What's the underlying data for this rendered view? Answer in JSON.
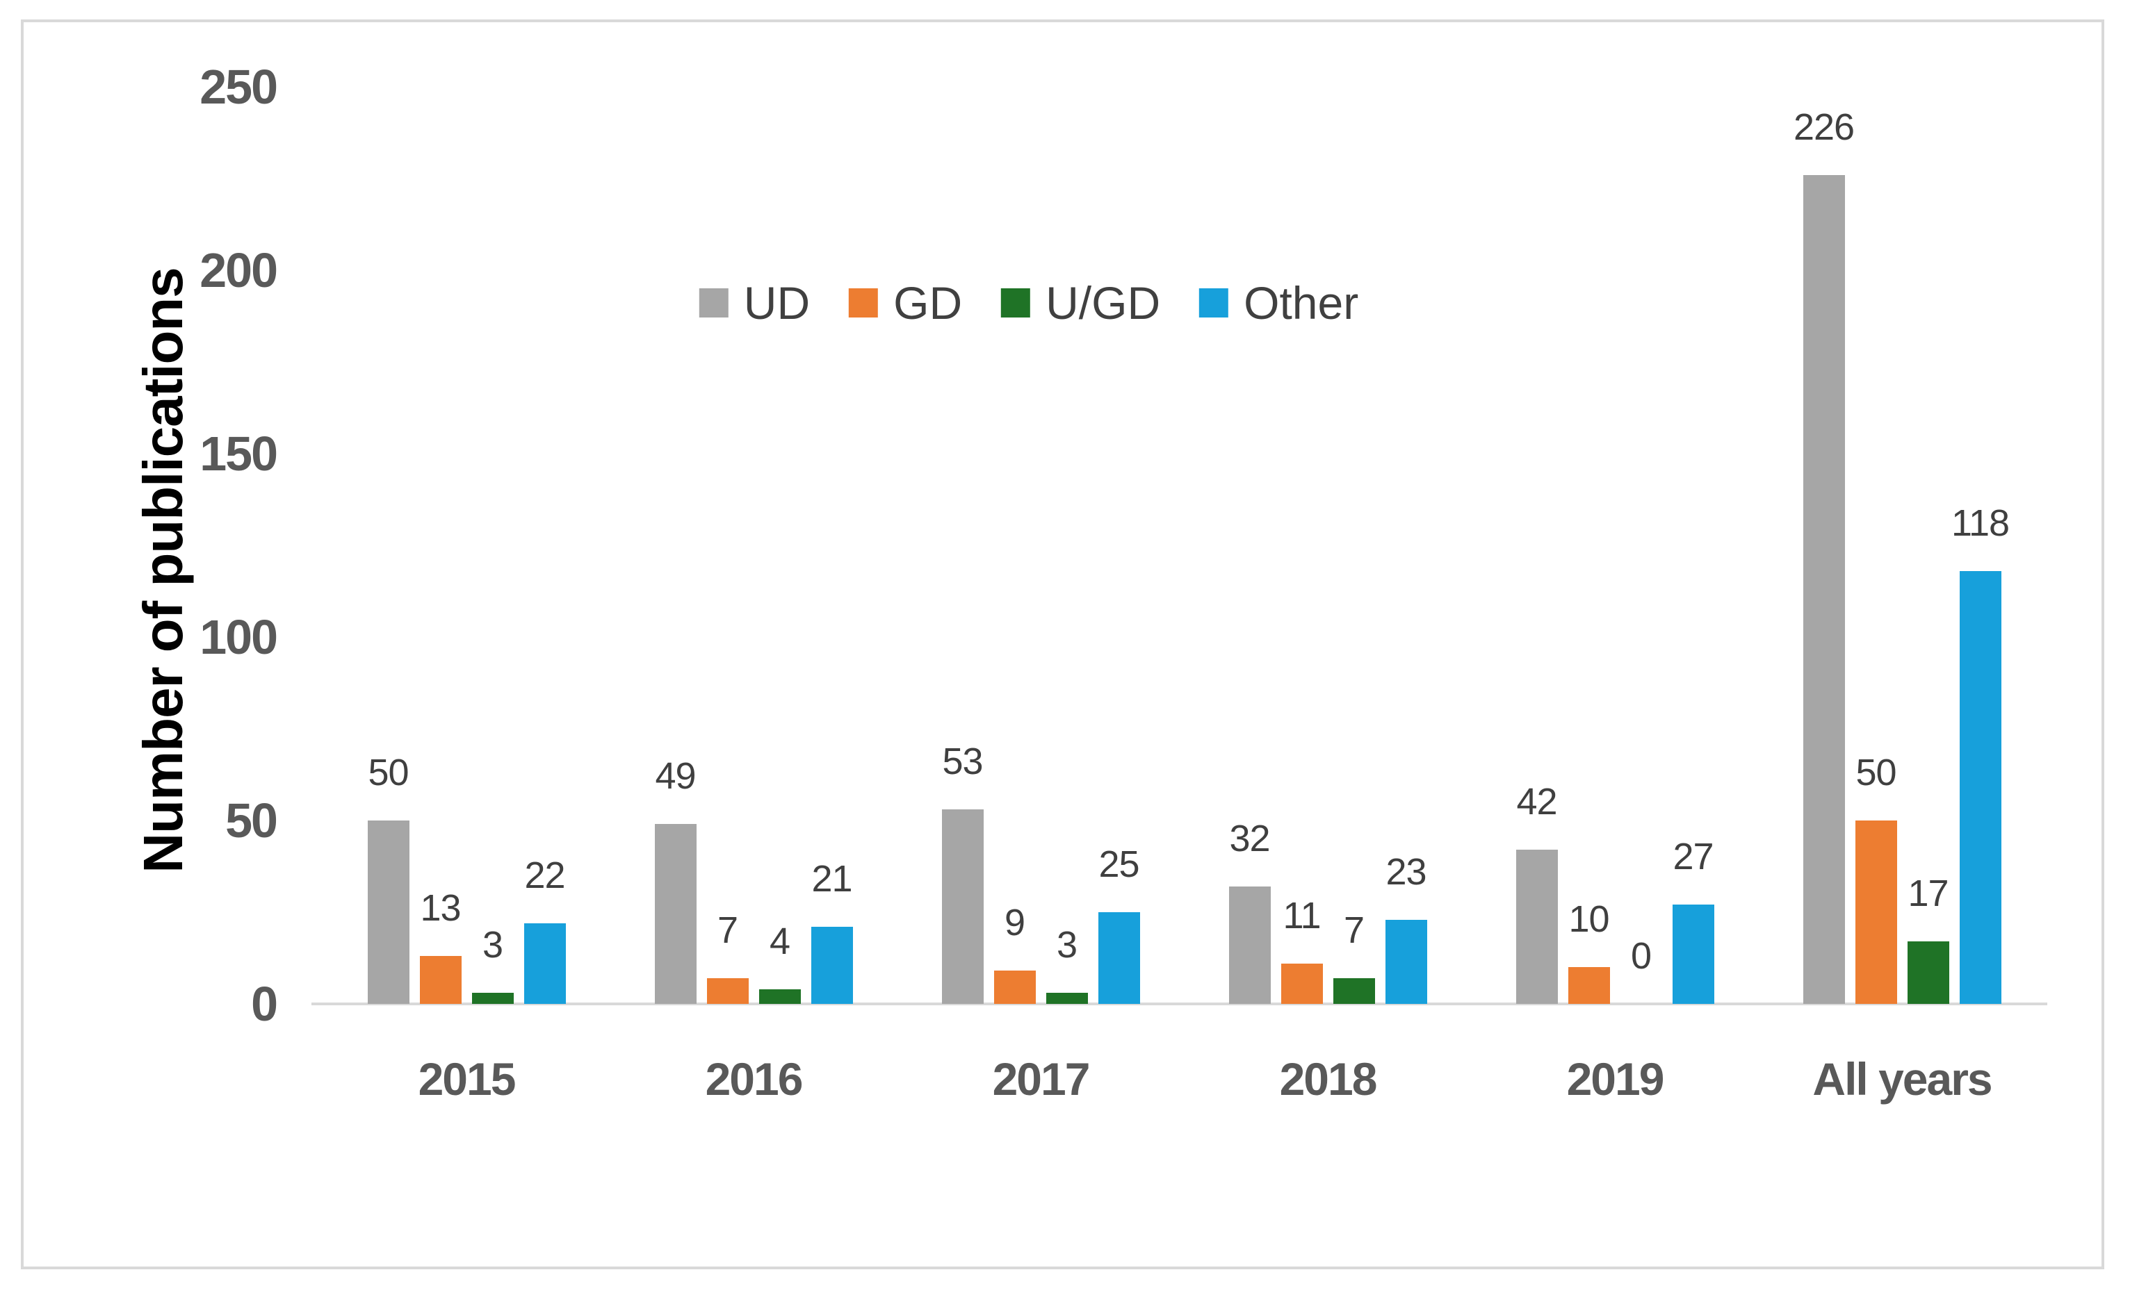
{
  "chart_data": {
    "type": "bar",
    "title": "",
    "ylabel": "Number of publications",
    "xlabel": "",
    "categories": [
      "2015",
      "2016",
      "2017",
      "2018",
      "2019",
      "All years"
    ],
    "series": [
      {
        "name": "UD",
        "color": "#A6A6A6",
        "values": [
          50,
          49,
          53,
          32,
          42,
          226
        ]
      },
      {
        "name": "GD",
        "color": "#ED7D31",
        "values": [
          13,
          7,
          9,
          11,
          10,
          50
        ]
      },
      {
        "name": "U/GD",
        "color": "#1F7326",
        "values": [
          3,
          4,
          3,
          7,
          0,
          17
        ]
      },
      {
        "name": "Other",
        "color": "#17A0DB",
        "values": [
          22,
          21,
          25,
          23,
          27,
          118
        ]
      }
    ],
    "y_ticks": [
      0,
      50,
      100,
      150,
      200,
      250
    ],
    "ylim": [
      0,
      250
    ],
    "grid": false,
    "data_labels": true,
    "legend_position": "top-center",
    "axis_line_color": "#D9D9D9",
    "frame_border_color": "#D9D9D9",
    "tick_text_color": "#595959",
    "data_label_color": "#3F3F3F",
    "background_color": "#FFFFFF"
  }
}
